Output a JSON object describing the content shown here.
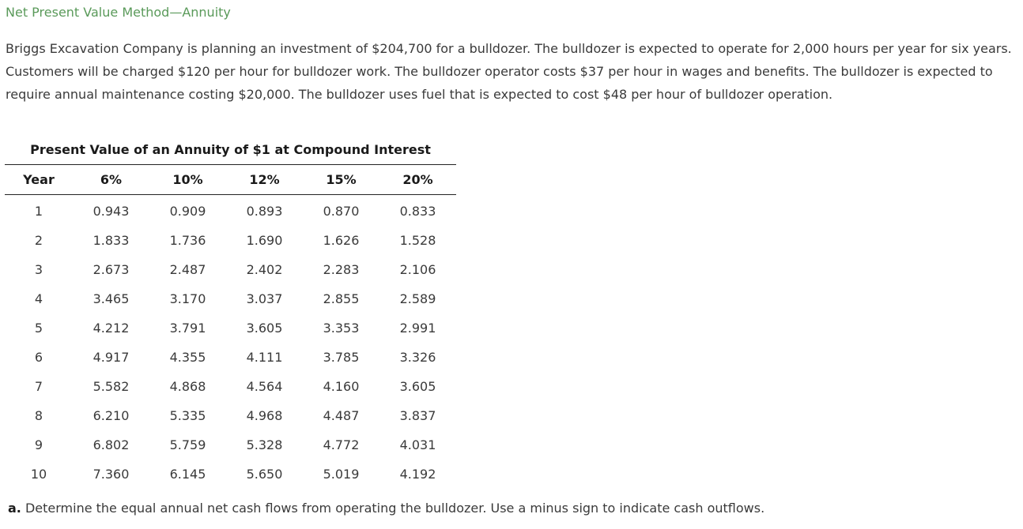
{
  "page": {
    "title": "Net Present Value Method—Annuity",
    "title_color": "#5a9a5a"
  },
  "problem": {
    "text": "Briggs Excavation Company is planning an investment of $204,700 for a bulldozer. The bulldozer is expected to operate for 2,000 hours per year for six years. Customers will be charged $120 per hour for bulldozer work. The bulldozer operator costs $37 per hour in wages and benefits. The bulldozer is expected to require annual maintenance costing $20,000. The bulldozer uses fuel that is expected to cost $48 per hour of bulldozer operation."
  },
  "pv_table": {
    "caption": "Present Value of an Annuity of $1 at Compound Interest",
    "headers": [
      "Year",
      "6%",
      "10%",
      "12%",
      "15%",
      "20%"
    ],
    "rows": [
      [
        "1",
        "0.943",
        "0.909",
        "0.893",
        "0.870",
        "0.833"
      ],
      [
        "2",
        "1.833",
        "1.736",
        "1.690",
        "1.626",
        "1.528"
      ],
      [
        "3",
        "2.673",
        "2.487",
        "2.402",
        "2.283",
        "2.106"
      ],
      [
        "4",
        "3.465",
        "3.170",
        "3.037",
        "2.855",
        "2.589"
      ],
      [
        "5",
        "4.212",
        "3.791",
        "3.605",
        "3.353",
        "2.991"
      ],
      [
        "6",
        "4.917",
        "4.355",
        "4.111",
        "3.785",
        "3.326"
      ],
      [
        "7",
        "5.582",
        "4.868",
        "4.564",
        "4.160",
        "3.605"
      ],
      [
        "8",
        "6.210",
        "5.335",
        "4.968",
        "4.487",
        "3.837"
      ],
      [
        "9",
        "6.802",
        "5.759",
        "5.328",
        "4.772",
        "4.031"
      ],
      [
        "10",
        "7.360",
        "6.145",
        "5.650",
        "5.019",
        "4.192"
      ]
    ]
  },
  "question": {
    "label": "a.",
    "text": " Determine the equal annual net cash flows from operating the bulldozer. Use a minus sign to indicate cash outflows."
  }
}
